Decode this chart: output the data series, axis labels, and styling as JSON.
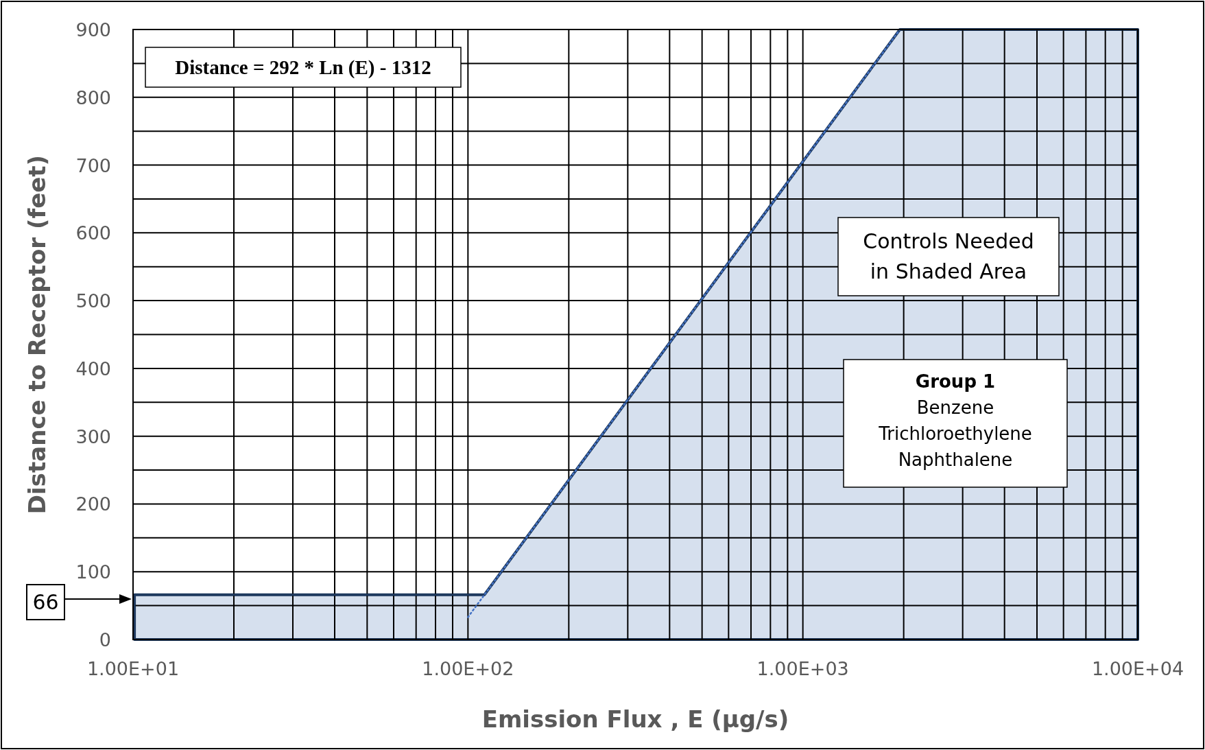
{
  "chart_data": {
    "type": "area",
    "xlabel": "Emission Flux , E (µg/s)",
    "ylabel": "Distance to Receptor (feet)",
    "log": "x",
    "grid": true,
    "xlim": [
      10,
      10000
    ],
    "ylim": [
      0,
      900
    ],
    "xticks": [
      {
        "value": 10,
        "label": "1.00E+01"
      },
      {
        "value": 20,
        "label": null
      },
      {
        "value": 30,
        "label": null
      },
      {
        "value": 40,
        "label": null
      },
      {
        "value": 50,
        "label": null
      },
      {
        "value": 60,
        "label": null
      },
      {
        "value": 70,
        "label": null
      },
      {
        "value": 80,
        "label": null
      },
      {
        "value": 90,
        "label": null
      },
      {
        "value": 100,
        "label": "1.00E+02"
      },
      {
        "value": 200,
        "label": null
      },
      {
        "value": 300,
        "label": null
      },
      {
        "value": 400,
        "label": null
      },
      {
        "value": 500,
        "label": null
      },
      {
        "value": 600,
        "label": null
      },
      {
        "value": 700,
        "label": null
      },
      {
        "value": 800,
        "label": null
      },
      {
        "value": 900,
        "label": null
      },
      {
        "value": 1000,
        "label": "1.00E+03"
      },
      {
        "value": 2000,
        "label": null
      },
      {
        "value": 3000,
        "label": null
      },
      {
        "value": 4000,
        "label": null
      },
      {
        "value": 5000,
        "label": null
      },
      {
        "value": 6000,
        "label": null
      },
      {
        "value": 7000,
        "label": null
      },
      {
        "value": 8000,
        "label": null
      },
      {
        "value": 9000,
        "label": null
      },
      {
        "value": 10000,
        "label": "1.00E+04"
      }
    ],
    "yticks": [
      0,
      {
        "value": 50,
        "label": null
      },
      100,
      {
        "value": 150,
        "label": null
      },
      200,
      {
        "value": 250,
        "label": null
      },
      300,
      {
        "value": 350,
        "label": null
      },
      400,
      {
        "value": 450,
        "label": null
      },
      500,
      {
        "value": 550,
        "label": null
      },
      600,
      {
        "value": 650,
        "label": null
      },
      700,
      {
        "value": 750,
        "label": null
      },
      800,
      {
        "value": 850,
        "label": null
      },
      900
    ],
    "series": [
      {
        "color": "#d6e0ee",
        "x": [
          10.1,
          10.1,
          112,
          1948,
          10000,
          10000
        ],
        "values": [
          0,
          66,
          66,
          900,
          900,
          0
        ]
      },
      {
        "type": "line",
        "line_style": "dotted",
        "color": "#4472c4",
        "x": [
          100,
          1948
        ],
        "values": [
          33,
          900
        ]
      }
    ],
    "annotations": [
      "Distance = 292 * Ln (E) - 1312",
      "Controls Needed\nin Shaded Area",
      "Group 1",
      "Benzene",
      "Trichloroethylene",
      "Naphthalene",
      "66"
    ]
  }
}
